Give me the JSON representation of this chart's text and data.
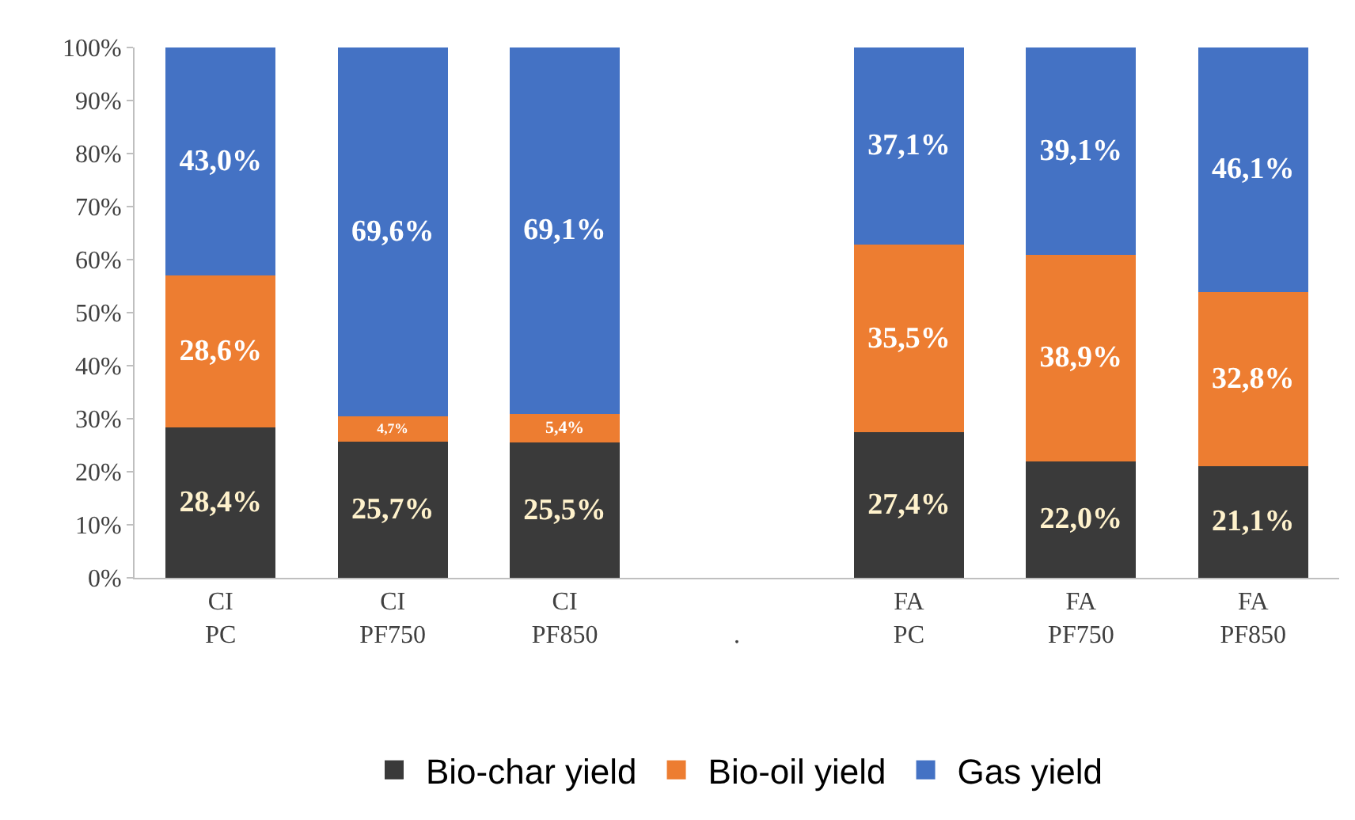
{
  "chart_data": {
    "type": "bar",
    "stacked": true,
    "categories": [
      "CI\nPC",
      "CI\nPF750",
      "CI\nPF850",
      "\n.",
      "FA\nPC",
      "FA\nPF750",
      "FA\nPF850"
    ],
    "series": [
      {
        "name": "Bio-char yield",
        "color": "#3a3a3a",
        "values": [
          28.4,
          25.7,
          25.5,
          null,
          27.4,
          22.0,
          21.1
        ],
        "value_labels": [
          "28,4%",
          "25,7%",
          "25,5%",
          null,
          "27,4%",
          "22,0%",
          "21,1%"
        ]
      },
      {
        "name": "Bio-oil yield",
        "color": "#ed7d31",
        "values": [
          28.6,
          4.7,
          5.4,
          null,
          35.5,
          38.9,
          32.8
        ],
        "value_labels": [
          "28,6%",
          "4,7%",
          "5,4%",
          null,
          "35,5%",
          "38,9%",
          "32,8%"
        ]
      },
      {
        "name": "Gas yield",
        "color": "#4472c4",
        "values": [
          43.0,
          69.6,
          69.1,
          null,
          37.1,
          39.1,
          46.1
        ],
        "value_labels": [
          "43,0%",
          "69,6%",
          "69,1%",
          null,
          "37,1%",
          "39,1%",
          "46,1%"
        ]
      }
    ],
    "ylim": [
      0,
      100
    ],
    "yticks": [
      {
        "value": 0,
        "label": "0%"
      },
      {
        "value": 10,
        "label": "10%"
      },
      {
        "value": 20,
        "label": "20%"
      },
      {
        "value": 30,
        "label": "30%"
      },
      {
        "value": 40,
        "label": "40%"
      },
      {
        "value": 50,
        "label": "50%"
      },
      {
        "value": 60,
        "label": "60%"
      },
      {
        "value": 70,
        "label": "70%"
      },
      {
        "value": 80,
        "label": "80%"
      },
      {
        "value": 90,
        "label": "90%"
      },
      {
        "value": 100,
        "label": "100%"
      }
    ],
    "grid": false,
    "legend": "bottom"
  }
}
